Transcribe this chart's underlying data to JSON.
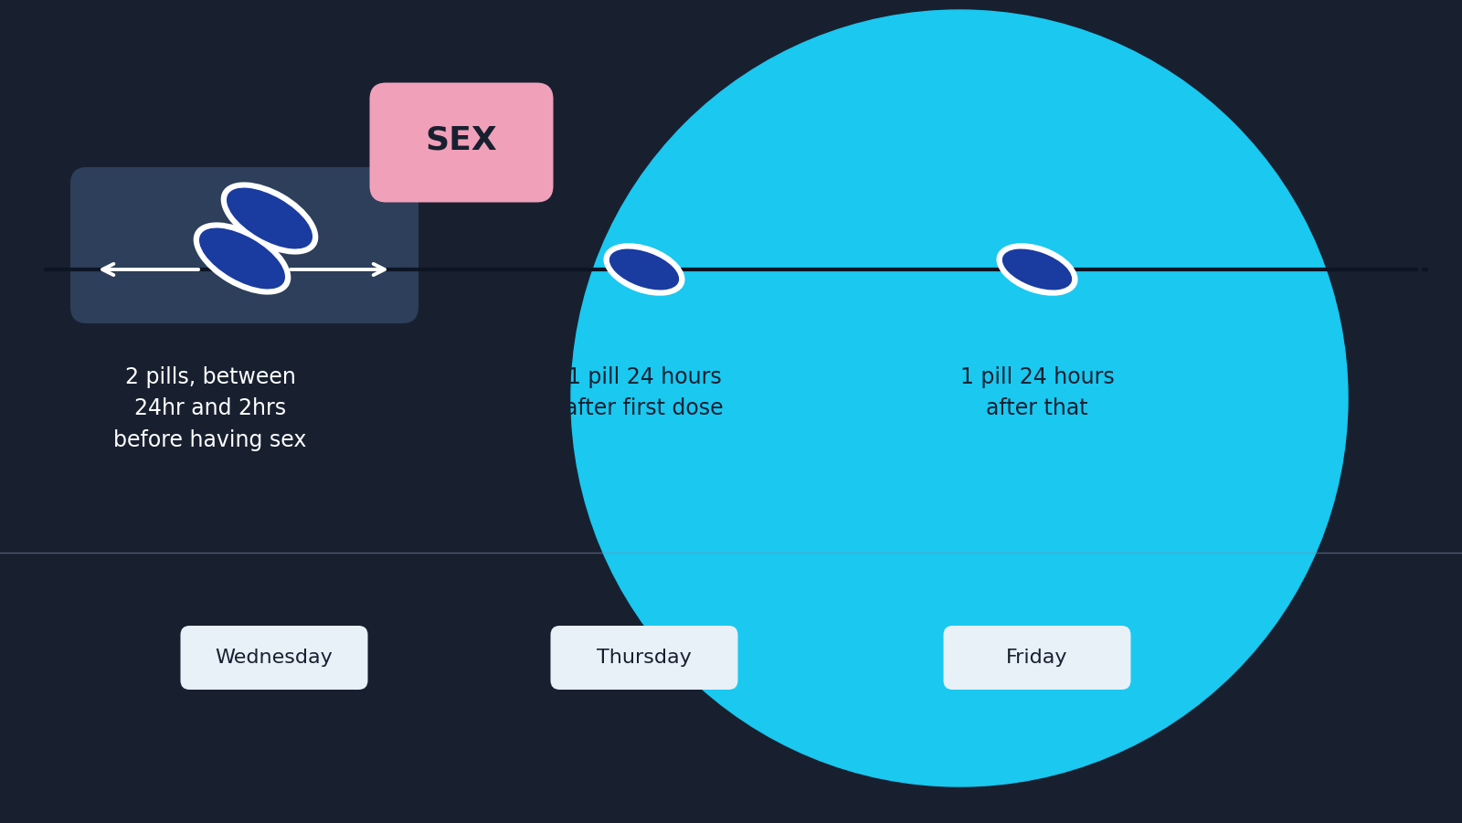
{
  "bg_color": "#182030",
  "blue_circle_color": "#1ac8f0",
  "dark_blue_rect_color": "#2d3f5a",
  "pill_color": "#1a3ba0",
  "pill_border_color": "#ffffff",
  "timeline_color": "#0d1525",
  "dot_color": "#0d1525",
  "sex_bubble_color": "#f0a0b8",
  "sex_text_color": "#182030",
  "sex_text": "SEX",
  "label1": "2 pills, between\n24hr and 2hrs\nbefore having sex",
  "label2": "1 pill 24 hours\nafter first dose",
  "label3": "1 pill 24 hours\nafter that",
  "day1": "Wednesday",
  "day2": "Thursday",
  "day3": "Friday",
  "label1_color": "#ffffff",
  "label23_color": "#182030",
  "day_box_color": "#e8f0f8",
  "day_text_color": "#182030",
  "arrow_color": "#ffffff",
  "separator_color": "#8090a8"
}
